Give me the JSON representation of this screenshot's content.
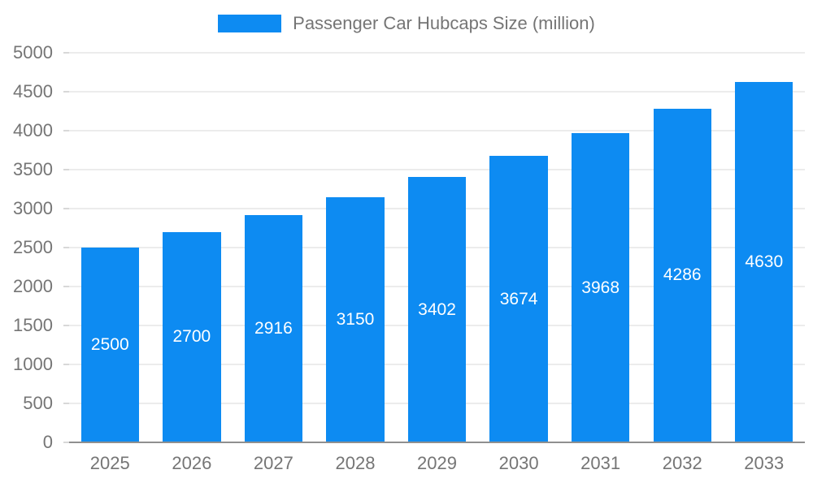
{
  "chart_data": {
    "type": "bar",
    "title": "Passenger Car Hubcaps Size (million)",
    "categories": [
      "2025",
      "2026",
      "2027",
      "2028",
      "2029",
      "2030",
      "2031",
      "2032",
      "2033"
    ],
    "values": [
      2500,
      2700,
      2916,
      3150,
      3402,
      3674,
      3968,
      4286,
      4630
    ],
    "xlabel": "",
    "ylabel": "",
    "ylim": [
      0,
      5000
    ],
    "ytick_step": 500,
    "grid": true,
    "legend_position": "top-center",
    "colors": {
      "bar": "#0d8bf2",
      "data_label": "#ffffff",
      "axis_text": "#757575",
      "gridline": "#dadada",
      "axis_line": "#8f8f8f"
    }
  }
}
